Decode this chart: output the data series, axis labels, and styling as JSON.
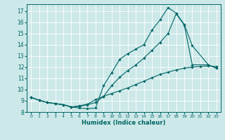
{
  "xlabel": "Humidex (Indice chaleur)",
  "bg_color": "#cde8e8",
  "line_color": "#006666",
  "grid_major_color": "#ffffff",
  "grid_minor_color": "#b8d8d8",
  "xlim": [
    -0.5,
    23.5
  ],
  "ylim": [
    8.0,
    17.6
  ],
  "xticks": [
    0,
    1,
    2,
    3,
    4,
    5,
    6,
    7,
    8,
    9,
    10,
    11,
    12,
    13,
    14,
    15,
    16,
    17,
    18,
    19,
    20,
    21,
    22,
    23
  ],
  "yticks": [
    8,
    9,
    10,
    11,
    12,
    13,
    14,
    15,
    16,
    17
  ],
  "line1_x": [
    0,
    1,
    2,
    3,
    4,
    5,
    6,
    7,
    8,
    9,
    10,
    11,
    12,
    13,
    14,
    15,
    16,
    17,
    18,
    19,
    20,
    22,
    23
  ],
  "line1_y": [
    9.3,
    9.05,
    8.85,
    8.75,
    8.65,
    8.45,
    8.35,
    8.3,
    8.35,
    10.35,
    11.5,
    12.7,
    13.2,
    13.6,
    14.0,
    15.3,
    16.2,
    17.3,
    16.8,
    15.8,
    13.9,
    12.2,
    11.9
  ],
  "line2_x": [
    0,
    1,
    2,
    3,
    4,
    5,
    6,
    7,
    8,
    9,
    10,
    11,
    12,
    13,
    14,
    15,
    16,
    17,
    18,
    19,
    20,
    21,
    22,
    23
  ],
  "line2_y": [
    9.3,
    9.05,
    8.85,
    8.75,
    8.65,
    8.45,
    8.55,
    8.7,
    9.1,
    9.4,
    9.65,
    9.9,
    10.15,
    10.45,
    10.75,
    11.05,
    11.35,
    11.55,
    11.75,
    11.9,
    12.0,
    12.05,
    12.1,
    12.05
  ],
  "line3_x": [
    0,
    1,
    2,
    3,
    4,
    5,
    6,
    7,
    8,
    9,
    10,
    11,
    12,
    13,
    14,
    15,
    16,
    17,
    18,
    19,
    20,
    22,
    23
  ],
  "line3_y": [
    9.3,
    9.05,
    8.85,
    8.75,
    8.65,
    8.45,
    8.5,
    8.65,
    8.85,
    9.4,
    10.35,
    11.1,
    11.7,
    12.2,
    12.8,
    13.5,
    14.2,
    15.0,
    16.75,
    15.75,
    12.2,
    12.2,
    11.9
  ],
  "marker_size": 1.8,
  "line_width": 0.8
}
